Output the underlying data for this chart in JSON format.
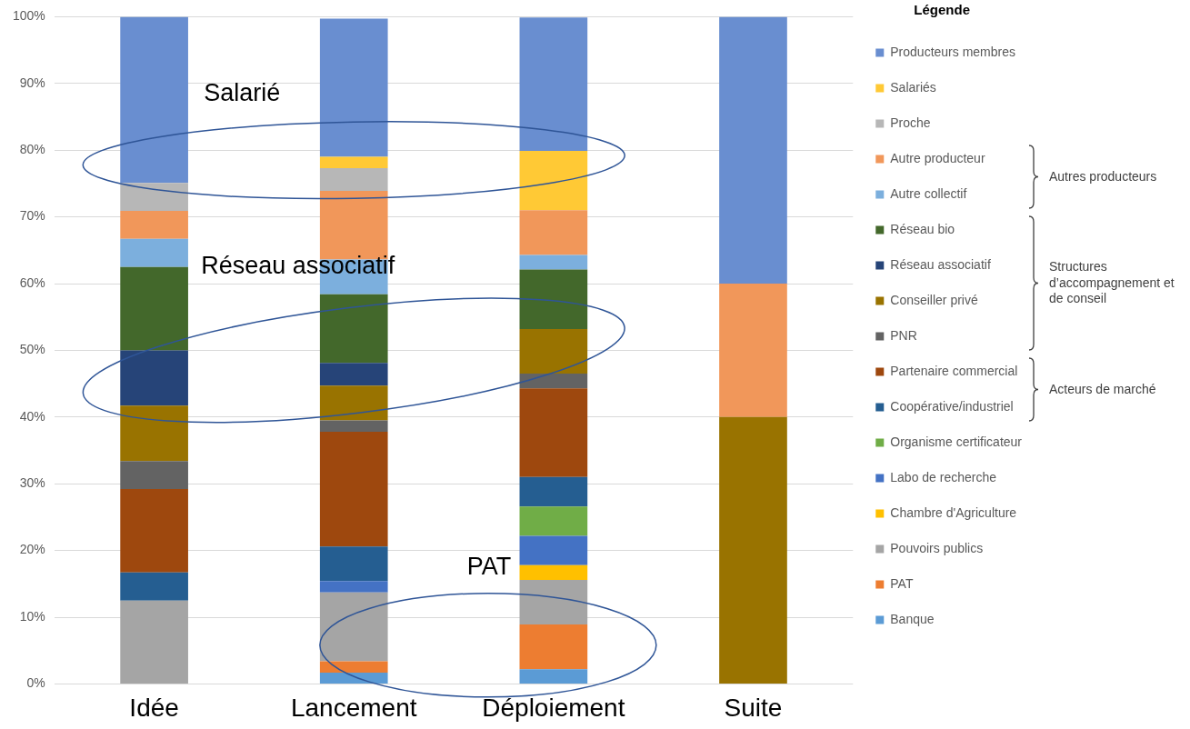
{
  "chart_data": {
    "type": "bar",
    "stacked": true,
    "categories": [
      "Idée",
      "Lancement",
      "Déploiement",
      "Suite"
    ],
    "ylim": [
      0,
      100
    ],
    "yticks": [
      {
        "value": 0,
        "label": "0%"
      },
      {
        "value": 10,
        "label": "10%"
      },
      {
        "value": 20,
        "label": "20%"
      },
      {
        "value": 30,
        "label": "30%"
      },
      {
        "value": 40,
        "label": "40%"
      },
      {
        "value": 50,
        "label": "50%"
      },
      {
        "value": 60,
        "label": "60%"
      },
      {
        "value": 70,
        "label": "70%"
      },
      {
        "value": 80,
        "label": "80%"
      },
      {
        "value": 90,
        "label": "90%"
      },
      {
        "value": 100,
        "label": "100%"
      }
    ],
    "grid": "y",
    "legend": "right",
    "legend_title": "Légende",
    "annotations": [
      "Salarié",
      "Réseau associatif",
      "PAT",
      "Autres producteurs",
      "Structures d’accompagnement et de conseil",
      "Acteurs de marché"
    ],
    "series": [
      {
        "name": "Banque",
        "color": "#5b9bd5",
        "values": [
          null,
          1.7,
          2.2,
          null
        ]
      },
      {
        "name": "PAT",
        "color": "#ed7d31",
        "values": [
          null,
          1.7,
          6.7,
          null
        ]
      },
      {
        "name": "Pouvoirs publics",
        "color": "#a5a5a5",
        "values": [
          12.5,
          10.3,
          6.7,
          null
        ]
      },
      {
        "name": "Chambre d'Agriculture",
        "color": "#ffc000",
        "values": [
          null,
          null,
          2.2,
          null
        ]
      },
      {
        "name": "Labo de recherche",
        "color": "#4472c4",
        "values": [
          null,
          1.7,
          4.4,
          null
        ]
      },
      {
        "name": "Organisme certificateur",
        "color": "#70ad47",
        "values": [
          null,
          null,
          4.4,
          null
        ]
      },
      {
        "name": "Coopérative/industriel",
        "color": "#255e91",
        "values": [
          4.2,
          5.2,
          4.4,
          null
        ]
      },
      {
        "name": "Partenaire commercial",
        "color": "#9e480e",
        "values": [
          12.5,
          17.2,
          13.3,
          null
        ]
      },
      {
        "name": "PNR",
        "color": "#636363",
        "values": [
          4.2,
          1.7,
          2.2,
          null
        ]
      },
      {
        "name": "Conseiller privé",
        "color": "#997300",
        "values": [
          8.3,
          5.2,
          6.7,
          40
        ]
      },
      {
        "name": "Réseau associatif",
        "color": "#264478",
        "values": [
          8.3,
          3.4,
          null,
          null
        ]
      },
      {
        "name": "Réseau bio",
        "color": "#43682b",
        "values": [
          12.5,
          10.3,
          8.9,
          null
        ]
      },
      {
        "name": "Autre collectif",
        "color": "#7cafdd",
        "values": [
          4.2,
          5.2,
          2.2,
          null
        ]
      },
      {
        "name": "Autre producteur",
        "color": "#f1975a",
        "values": [
          4.2,
          10.3,
          6.7,
          20
        ]
      },
      {
        "name": "Proche",
        "color": "#b7b7b7",
        "values": [
          4.2,
          3.4,
          null,
          null
        ]
      },
      {
        "name": "Salariés",
        "color": "#ffc935",
        "values": [
          null,
          1.7,
          8.9,
          null
        ]
      },
      {
        "name": "Producteurs membres",
        "color": "#698ed0",
        "values": [
          24.9,
          20.7,
          20.0,
          40
        ]
      }
    ]
  }
}
